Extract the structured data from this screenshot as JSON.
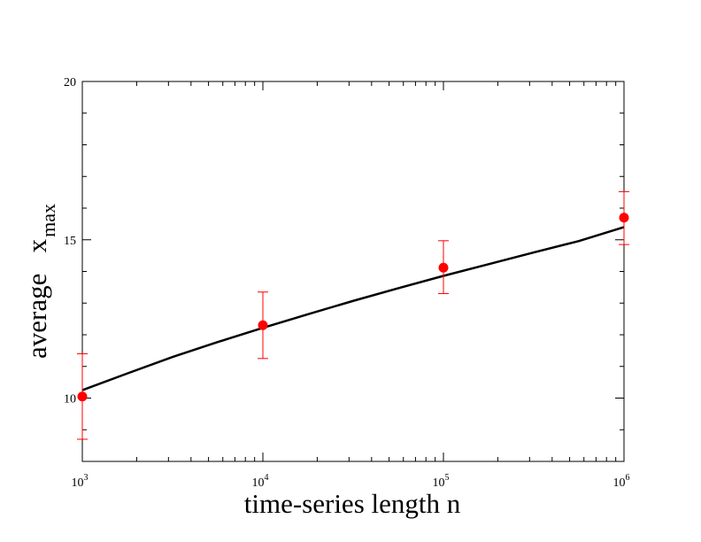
{
  "chart_data": {
    "type": "scatter",
    "x_scale": "log",
    "xlim": [
      1000,
      1000000
    ],
    "ylim": [
      8,
      20
    ],
    "xlabel": "time-series length n",
    "ylabel": "average   x",
    "ylabel_subscript": "max",
    "x_ticks": [
      {
        "base": "10",
        "exp": "3",
        "value": 1000
      },
      {
        "base": "10",
        "exp": "4",
        "value": 10000
      },
      {
        "base": "10",
        "exp": "5",
        "value": 100000
      },
      {
        "base": "10",
        "exp": "6",
        "value": 1000000
      }
    ],
    "y_ticks": [
      {
        "label": "10",
        "value": 10
      },
      {
        "label": "15",
        "value": 15
      },
      {
        "label": "20",
        "value": 20
      }
    ],
    "y_minor_step": 1,
    "grid": false,
    "legend": "none",
    "series": [
      {
        "type": "scatter",
        "color": "#ff0000",
        "points": [
          {
            "x": 1000,
            "y": 10.05,
            "err_low": 8.7,
            "err_high": 11.4
          },
          {
            "x": 10000,
            "y": 12.3,
            "err_low": 11.25,
            "err_high": 13.35
          },
          {
            "x": 100000,
            "y": 14.12,
            "err_low": 13.3,
            "err_high": 14.97
          },
          {
            "x": 1000000,
            "y": 15.7,
            "err_low": 14.85,
            "err_high": 16.52
          }
        ]
      },
      {
        "type": "line",
        "color": "#000000",
        "x": [
          1000,
          1778,
          3162,
          5623,
          10000,
          17783,
          31623,
          56234,
          100000,
          177828,
          316228,
          562341,
          1000000
        ],
        "y": [
          10.25,
          10.78,
          11.3,
          11.77,
          12.22,
          12.65,
          13.07,
          13.47,
          13.86,
          14.23,
          14.6,
          14.96,
          15.4
        ]
      }
    ]
  }
}
